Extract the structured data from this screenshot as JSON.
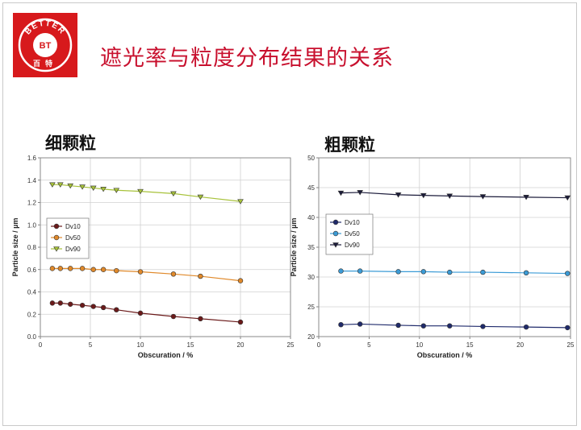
{
  "slide": {
    "title": "遮光率与粒度分布结果的关系",
    "logo": {
      "ring_text": "BETTER",
      "center_text": "BT",
      "bottom_text": "百特",
      "color": "#d7191c"
    }
  },
  "chart_data": [
    {
      "type": "line",
      "title": "细颗粒",
      "xlabel": "Obscuration / %",
      "ylabel": "Particle size / µm",
      "xlim": [
        0,
        25
      ],
      "ylim": [
        0,
        1.6
      ],
      "xticks": [
        "0",
        "5",
        "10",
        "15",
        "20",
        "25"
      ],
      "yticks": [
        "0.0",
        "0.2",
        "0.4",
        "0.6",
        "0.8",
        "1.0",
        "1.2",
        "1.4",
        "1.6"
      ],
      "grid": true,
      "legend": "left-middle",
      "x": [
        1.2,
        2.0,
        3.0,
        4.2,
        5.3,
        6.3,
        7.6,
        10.0,
        13.3,
        16.0,
        20.0
      ],
      "series": [
        {
          "name": "Dv10",
          "marker": "circle",
          "color": "#6b1a1a",
          "values": [
            0.3,
            0.3,
            0.29,
            0.28,
            0.27,
            0.26,
            0.24,
            0.21,
            0.18,
            0.16,
            0.13
          ]
        },
        {
          "name": "Dv50",
          "marker": "circle",
          "color": "#e0892a",
          "values": [
            0.61,
            0.61,
            0.61,
            0.61,
            0.6,
            0.6,
            0.59,
            0.58,
            0.56,
            0.54,
            0.5
          ]
        },
        {
          "name": "Dv90",
          "marker": "triangle-down",
          "color": "#a7c23a",
          "values": [
            1.36,
            1.36,
            1.35,
            1.34,
            1.33,
            1.32,
            1.31,
            1.3,
            1.28,
            1.25,
            1.21
          ]
        }
      ]
    },
    {
      "type": "line",
      "title": "粗颗粒",
      "xlabel": "Obscuration / %",
      "ylabel": "Particle size / µm",
      "xlim": [
        0,
        25
      ],
      "ylim": [
        20,
        50
      ],
      "xticks": [
        "0",
        "5",
        "10",
        "15",
        "20",
        "25"
      ],
      "yticks": [
        "20",
        "25",
        "30",
        "35",
        "40",
        "45",
        "50"
      ],
      "grid": true,
      "legend": "left-middle",
      "x": [
        2.2,
        4.1,
        7.9,
        10.4,
        13.0,
        16.3,
        20.6,
        24.7
      ],
      "series": [
        {
          "name": "Dv10",
          "marker": "circle",
          "color": "#1f2a6b",
          "values": [
            22.0,
            22.1,
            21.9,
            21.8,
            21.8,
            21.7,
            21.6,
            21.5
          ]
        },
        {
          "name": "Dv50",
          "marker": "circle",
          "color": "#3b9bd6",
          "values": [
            31.0,
            31.0,
            30.9,
            30.9,
            30.8,
            30.8,
            30.7,
            30.6
          ]
        },
        {
          "name": "Dv90",
          "marker": "triangle-down",
          "color": "#1b1b3a",
          "values": [
            44.1,
            44.2,
            43.8,
            43.7,
            43.6,
            43.5,
            43.4,
            43.3
          ]
        }
      ]
    }
  ]
}
